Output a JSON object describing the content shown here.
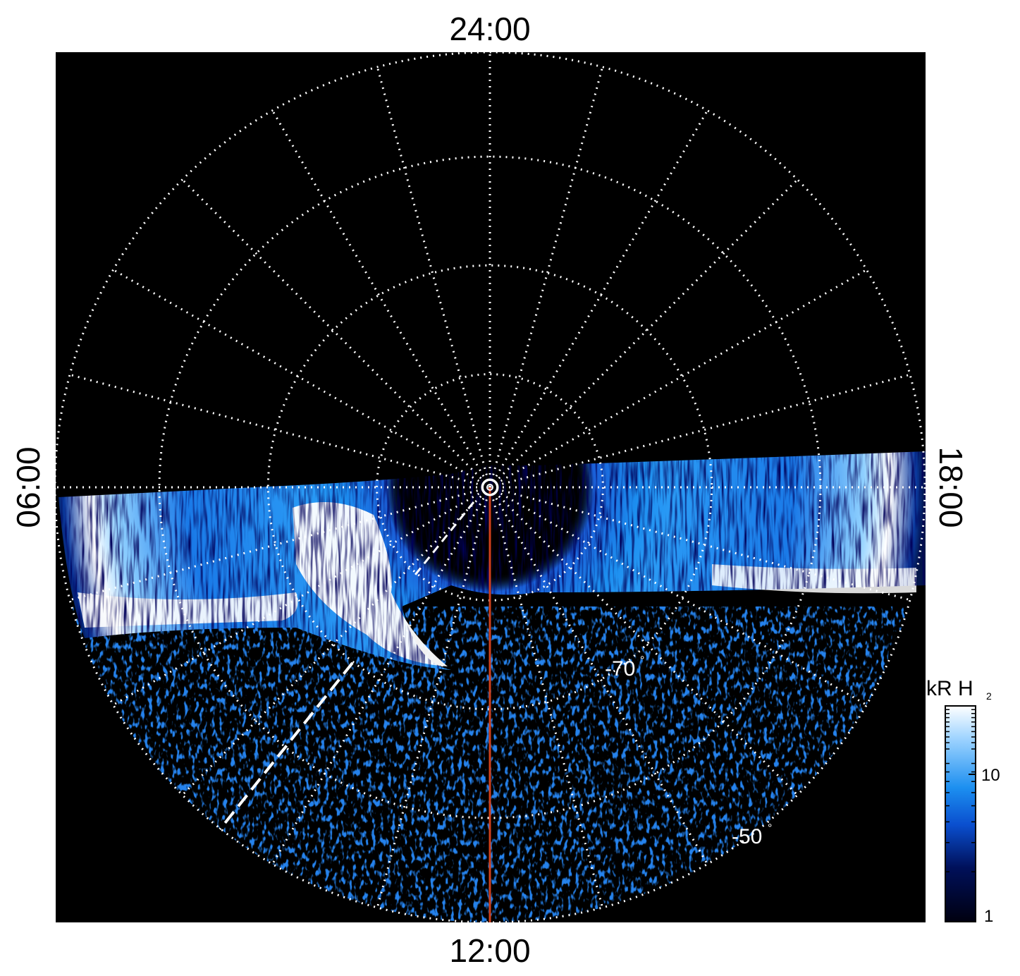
{
  "local_time_labels": {
    "top": "24:00",
    "bottom": "12:00",
    "left": "06:00",
    "right": "18:00"
  },
  "latitude_labels": {
    "inner": "-70",
    "outer": "-50",
    "degree_symbol": "°"
  },
  "colorbar": {
    "unit": "kR H",
    "unit_subscript": "2",
    "scale": "log",
    "tick_labels": [
      "10",
      "1"
    ],
    "colors": [
      "#000010",
      "#00105a",
      "#0a4fcf",
      "#1c8ff0",
      "#9fd4ff",
      "#ffffff"
    ]
  },
  "colors": {
    "grid": "#ffffff",
    "noon_meridian": "#d0401c",
    "background": "#000000"
  }
}
